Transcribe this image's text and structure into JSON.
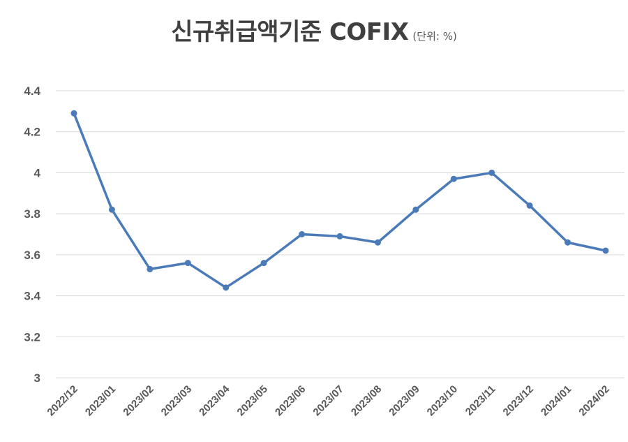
{
  "chart_data": {
    "type": "line",
    "title": "신규취급액기준 COFIX",
    "unit_note": "(단위: %)",
    "xlabel": "",
    "ylabel": "",
    "ylim": [
      3,
      4.4
    ],
    "yticks": [
      "3",
      "3.2",
      "3.4",
      "3.6",
      "3.8",
      "4",
      "4.2",
      "4.4"
    ],
    "ytick_values": [
      3,
      3.2,
      3.4,
      3.6,
      3.8,
      4,
      4.2,
      4.4
    ],
    "grid": true,
    "legend": "none",
    "categories": [
      "2022/12",
      "2023/01",
      "2023/02",
      "2023/03",
      "2023/04",
      "2023/05",
      "2023/06",
      "2023/07",
      "2023/08",
      "2023/09",
      "2023/10",
      "2023/11",
      "2023/12",
      "2024/01",
      "2024/02"
    ],
    "series": [
      {
        "values": [
          4.29,
          3.82,
          3.53,
          3.56,
          3.44,
          3.56,
          3.7,
          3.69,
          3.66,
          3.82,
          3.97,
          4.0,
          3.84,
          3.66,
          3.62
        ],
        "color": "#4a7ab8"
      }
    ]
  }
}
